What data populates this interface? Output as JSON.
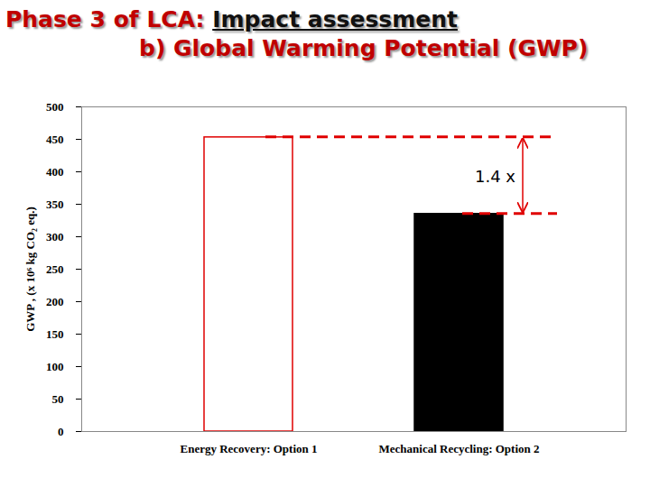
{
  "chart_data": {
    "type": "bar",
    "title": "Phase 3 of LCA: Impact assessment",
    "subtitle": "b)  Global Warming Potential (GWP)",
    "y_label": "GWP , (x 10⁶ kg CO₂ eq.)",
    "categories": [
      "Energy Recovery: Option 1",
      "Mechanical Recycling: Option 2"
    ],
    "values": [
      453,
      335
    ],
    "colors": [
      "#ffffff",
      "#000000"
    ],
    "ylim": [
      0,
      500
    ],
    "yticks": [
      0,
      50,
      100,
      150,
      200,
      250,
      300,
      350,
      400,
      450,
      500
    ],
    "grid": false,
    "annotations": [
      {
        "text": "1.4 x"
      }
    ]
  }
}
